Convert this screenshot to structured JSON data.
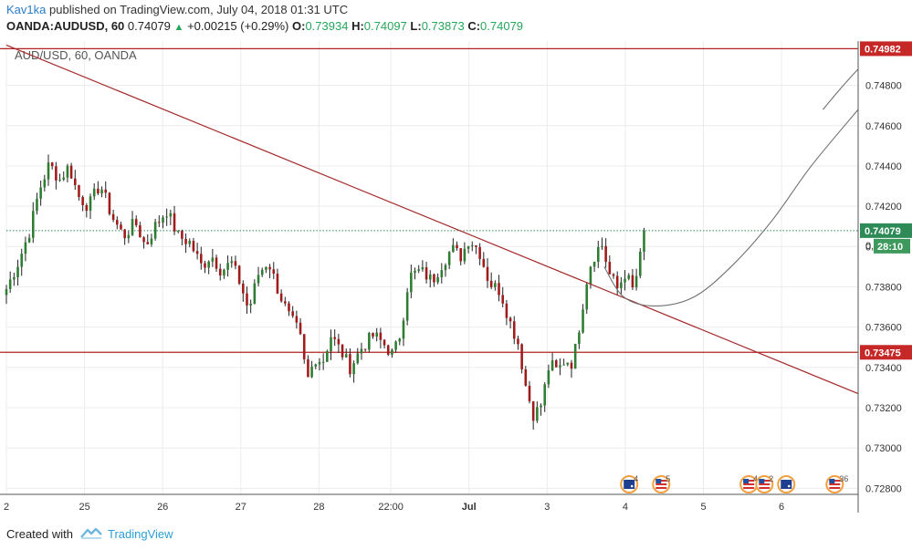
{
  "header": {
    "author": "Kav1ka",
    "published_text": "published on TradingView.com, July 04, 2018 01:31 UTC",
    "symbol": "OANDA:AUDUSD, 60",
    "last": "0.74079",
    "change": "+0.00215 (+0.29%)",
    "o_label": "O:",
    "o_value": "0.73934",
    "h_label": "H:",
    "h_value": "0.74097",
    "l_label": "L:",
    "l_value": "0.73873",
    "c_label": "C:",
    "c_value": "0.74079"
  },
  "footer": {
    "created_with": "Created with",
    "brand": "TradingView"
  },
  "chart_data": {
    "type": "candlestick",
    "title": "AUD/USD, 60, OANDA",
    "ylim": [
      0.7277,
      0.7502
    ],
    "y_ticks": [
      "0.72800",
      "0.73000",
      "0.73200",
      "0.73400",
      "0.73600",
      "0.73800",
      "0.74000",
      "0.74200",
      "0.74400",
      "0.74600",
      "0.74800"
    ],
    "x_ticks": [
      {
        "label": "2",
        "pos": 0.0
      },
      {
        "label": "25",
        "pos": 1.0
      },
      {
        "label": "26",
        "pos": 2.0
      },
      {
        "label": "27",
        "pos": 3.0
      },
      {
        "label": "28",
        "pos": 4.0
      },
      {
        "label": "22:00",
        "pos": 4.92
      },
      {
        "label": "Jul",
        "pos": 5.92
      },
      {
        "label": "3",
        "pos": 6.92
      },
      {
        "label": "4",
        "pos": 7.92
      },
      {
        "label": "5",
        "pos": 8.92
      },
      {
        "label": "6",
        "pos": 9.92
      }
    ],
    "x_range": [
      0,
      10.9
    ],
    "price_tags": {
      "upper_level": "0.74982",
      "last_price": "0.74079",
      "countdown": "28:10",
      "lower_level": "0.73475"
    },
    "horizontal_levels": [
      0.74982,
      0.73475
    ],
    "trendline": {
      "x1": 0.0,
      "y1": 0.75,
      "x2": 10.9,
      "y2": 0.7327
    },
    "projection_curve": [
      [
        7.65,
        0.739
      ],
      [
        7.9,
        0.7375
      ],
      [
        8.3,
        0.73705
      ],
      [
        8.8,
        0.7375
      ],
      [
        9.3,
        0.7391
      ],
      [
        9.8,
        0.7413
      ],
      [
        10.3,
        0.744
      ],
      [
        10.9,
        0.7468
      ]
    ],
    "projection_stub": [
      [
        10.45,
        0.7468
      ],
      [
        10.9,
        0.7488
      ]
    ],
    "close_path": [
      [
        0.0,
        0.7379
      ],
      [
        0.15,
        0.7392
      ],
      [
        0.3,
        0.7408
      ],
      [
        0.42,
        0.7428
      ],
      [
        0.55,
        0.7441
      ],
      [
        0.68,
        0.7433
      ],
      [
        0.8,
        0.744
      ],
      [
        0.92,
        0.7425
      ],
      [
        1.05,
        0.742
      ],
      [
        1.2,
        0.7431
      ],
      [
        1.35,
        0.7415
      ],
      [
        1.5,
        0.7405
      ],
      [
        1.65,
        0.7412
      ],
      [
        1.78,
        0.74
      ],
      [
        1.9,
        0.741
      ],
      [
        2.05,
        0.7418
      ],
      [
        2.2,
        0.7405
      ],
      [
        2.35,
        0.7402
      ],
      [
        2.5,
        0.739
      ],
      [
        2.62,
        0.7396
      ],
      [
        2.75,
        0.7388
      ],
      [
        2.88,
        0.7392
      ],
      [
        3.0,
        0.7381
      ],
      [
        3.1,
        0.7368
      ],
      [
        3.22,
        0.7386
      ],
      [
        3.35,
        0.7393
      ],
      [
        3.48,
        0.7378
      ],
      [
        3.62,
        0.7365
      ],
      [
        3.75,
        0.7357
      ],
      [
        3.85,
        0.7333
      ],
      [
        3.95,
        0.7345
      ],
      [
        4.05,
        0.7343
      ],
      [
        4.15,
        0.7356
      ],
      [
        4.28,
        0.7348
      ],
      [
        4.4,
        0.734
      ],
      [
        4.55,
        0.735
      ],
      [
        4.7,
        0.7356
      ],
      [
        4.82,
        0.7352
      ],
      [
        4.95,
        0.7346
      ],
      [
        5.05,
        0.7358
      ],
      [
        5.15,
        0.7385
      ],
      [
        5.3,
        0.7388
      ],
      [
        5.45,
        0.7383
      ],
      [
        5.55,
        0.739
      ],
      [
        5.7,
        0.7399
      ],
      [
        5.82,
        0.7395
      ],
      [
        5.92,
        0.7404
      ],
      [
        6.05,
        0.7398
      ],
      [
        6.18,
        0.7382
      ],
      [
        6.32,
        0.7378
      ],
      [
        6.45,
        0.7362
      ],
      [
        6.55,
        0.7352
      ],
      [
        6.65,
        0.733
      ],
      [
        6.75,
        0.7316
      ],
      [
        6.85,
        0.7322
      ],
      [
        6.95,
        0.7342
      ],
      [
        7.05,
        0.7338
      ],
      [
        7.15,
        0.7344
      ],
      [
        7.25,
        0.7342
      ],
      [
        7.35,
        0.7365
      ],
      [
        7.45,
        0.7389
      ],
      [
        7.55,
        0.7398
      ],
      [
        7.62,
        0.7401
      ],
      [
        7.72,
        0.7386
      ],
      [
        7.82,
        0.7379
      ],
      [
        7.92,
        0.7387
      ],
      [
        8.02,
        0.7378
      ],
      [
        8.1,
        0.7392
      ],
      [
        8.16,
        0.7406
      ]
    ],
    "events": [
      {
        "x": 7.97,
        "flag": "au",
        "label": "4"
      },
      {
        "x": 8.38,
        "flag": "us",
        "label": "5"
      },
      {
        "x": 9.5,
        "flag": "us",
        "label": "4"
      },
      {
        "x": 9.7,
        "flag": "us",
        "label": "2"
      },
      {
        "x": 9.98,
        "flag": "au",
        "label": ""
      },
      {
        "x": 10.6,
        "flag": "us",
        "label": "36"
      }
    ],
    "colors": {
      "up_body": "#2e7d32",
      "down_body": "#a01c1c",
      "wick": "#222222",
      "level_line": "#b22222",
      "trendline": "#a52a2a",
      "projection": "#707070",
      "last_price_line": "#2e8b57",
      "last_price_tag": "#2e8b57",
      "countdown_tag": "#3d9a5c",
      "level_tag": "#c62828",
      "grid": "#ececec"
    }
  }
}
